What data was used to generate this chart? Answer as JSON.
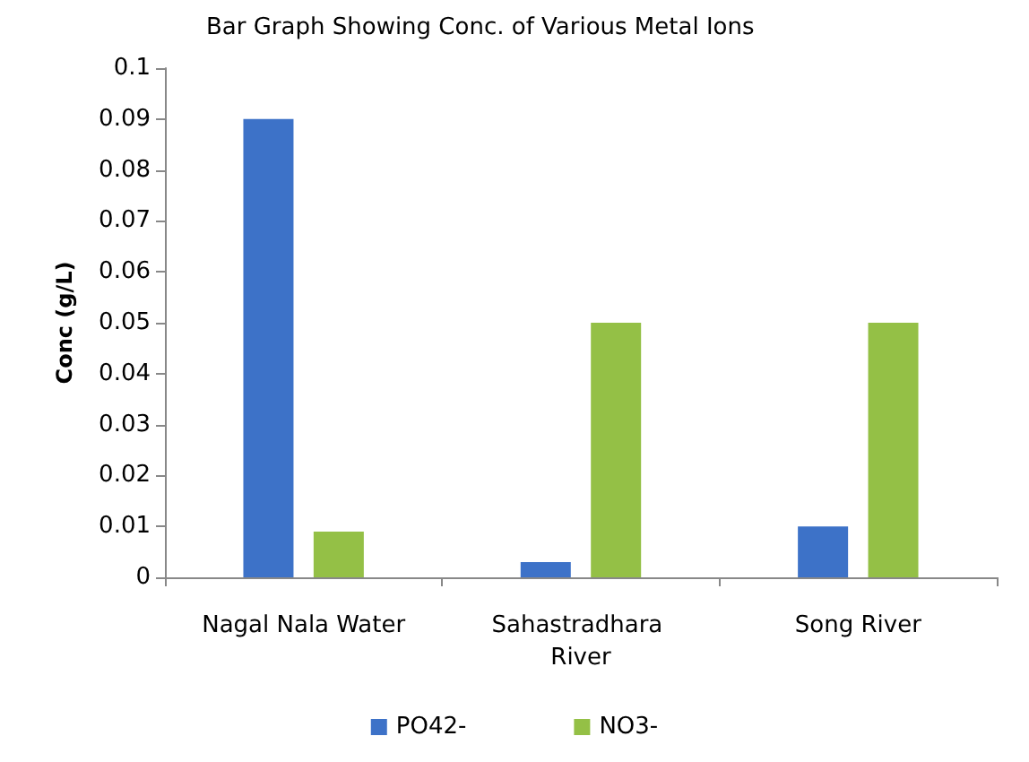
{
  "chart_data": {
    "type": "bar",
    "title": "Bar Graph Showing Conc. of Various Metal Ions",
    "ylabel": "Conc (g/L)",
    "categories": [
      "Nagal Nala Water",
      "Sahastradhara River",
      "Song River"
    ],
    "series": [
      {
        "name": "PO42-",
        "color": "#3d72c8",
        "values": [
          0.09,
          0.003,
          0.01
        ]
      },
      {
        "name": "NO3-",
        "color": "#94c046",
        "values": [
          0.009,
          0.05,
          0.05
        ]
      }
    ],
    "ylim": [
      0,
      0.1
    ],
    "yticks": [
      0,
      0.01,
      0.02,
      0.03,
      0.04,
      0.05,
      0.06,
      0.07,
      0.08,
      0.09,
      0.1
    ],
    "grid": false,
    "legend": "bottom"
  }
}
